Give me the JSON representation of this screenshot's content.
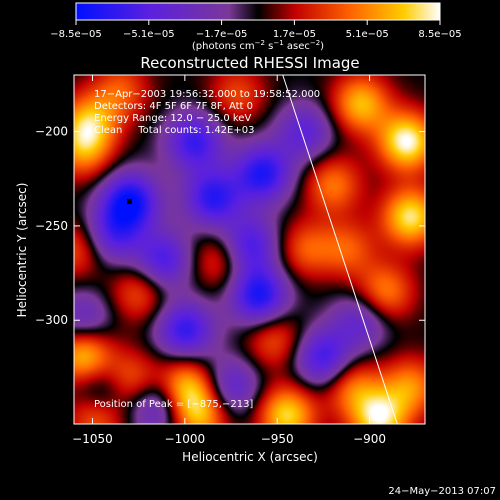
{
  "chart_data": {
    "type": "heatmap",
    "title": "Reconstructed RHESSI Image",
    "xlabel": "Heliocentric X (arcsec)",
    "ylabel": "Heliocentric Y (arcsec)",
    "xlim": [
      -1060,
      -870
    ],
    "ylim": [
      -355,
      -170
    ],
    "x_ticks": [
      -1050,
      -1000,
      -950,
      -900
    ],
    "x_tick_labels": [
      "−1050",
      "−1000",
      "−950",
      "−900"
    ],
    "y_ticks": [
      -200,
      -250,
      -300
    ],
    "y_tick_labels": [
      "−200",
      "−250",
      "−300"
    ],
    "colorbar": {
      "min": -8.5e-05,
      "max": 8.5e-05,
      "ticks": [
        -8.5e-05,
        -5.1e-05,
        -1.7e-05,
        1.7e-05,
        5.1e-05,
        8.5e-05
      ],
      "tick_labels": [
        "−8.5e−05",
        "−5.1e−05",
        "−1.7e−05",
        "1.7e−05",
        "5.1e−05",
        "8.5e−05"
      ],
      "units_text": "(photons cm",
      "units_exp1": "−2",
      "units_mid": " s",
      "units_exp2": "−1",
      "units_end": " asec",
      "units_exp3": "−2",
      "units_close": ")"
    },
    "annotations": [
      "17−Apr−2003 19:56:32.000 to 19:58:52.000",
      "Detectors: 4F 5F 6F 7F 8F, Att 0",
      "Energy Range: 12.0 − 25.0 keV",
      "Clean     Total counts: 1.42E+03"
    ],
    "peak_label": "Position of Peak = [−875,−213]",
    "limb_line": [
      {
        "x": -947,
        "y": -170
      },
      {
        "x": -885,
        "y": -355
      }
    ],
    "min_marker": {
      "x": -1030,
      "y": -237
    },
    "blobs": [
      {
        "x": -1030,
        "y": -237,
        "v": -0.98
      },
      {
        "x": -1040,
        "y": -255,
        "v": -0.6
      },
      {
        "x": -995,
        "y": -205,
        "v": -0.75
      },
      {
        "x": -985,
        "y": -235,
        "v": -0.8
      },
      {
        "x": -958,
        "y": -222,
        "v": -0.85
      },
      {
        "x": -965,
        "y": -260,
        "v": -0.7
      },
      {
        "x": -1012,
        "y": -268,
        "v": -0.7
      },
      {
        "x": -960,
        "y": -287,
        "v": -0.9
      },
      {
        "x": -1000,
        "y": -305,
        "v": -0.78
      },
      {
        "x": -1055,
        "y": -300,
        "v": -0.5
      },
      {
        "x": -925,
        "y": -320,
        "v": -0.75
      },
      {
        "x": -1045,
        "y": -338,
        "v": -0.55
      },
      {
        "x": -905,
        "y": -300,
        "v": -0.5
      },
      {
        "x": -935,
        "y": -200,
        "v": -0.55
      },
      {
        "x": -975,
        "y": -335,
        "v": -0.55
      },
      {
        "x": -1015,
        "y": -345,
        "v": -0.6
      },
      {
        "x": -880,
        "y": -205,
        "v": 1.0
      },
      {
        "x": -878,
        "y": -245,
        "v": 0.9
      },
      {
        "x": -892,
        "y": -285,
        "v": 0.6
      },
      {
        "x": -905,
        "y": -185,
        "v": 0.75
      },
      {
        "x": -920,
        "y": -228,
        "v": 0.55
      },
      {
        "x": -1052,
        "y": -195,
        "v": 0.7
      },
      {
        "x": -1055,
        "y": -210,
        "v": 0.55
      },
      {
        "x": -1055,
        "y": -318,
        "v": 0.85
      },
      {
        "x": -1048,
        "y": -350,
        "v": 0.6
      },
      {
        "x": -1030,
        "y": -332,
        "v": 0.55
      },
      {
        "x": -1000,
        "y": -335,
        "v": 0.75
      },
      {
        "x": -992,
        "y": -350,
        "v": 0.7
      },
      {
        "x": -945,
        "y": -350,
        "v": 0.85
      },
      {
        "x": -910,
        "y": -335,
        "v": 0.55
      },
      {
        "x": -895,
        "y": -352,
        "v": 0.9
      },
      {
        "x": -878,
        "y": -335,
        "v": 0.6
      },
      {
        "x": -1025,
        "y": -285,
        "v": 0.45
      },
      {
        "x": -1058,
        "y": -262,
        "v": 0.45
      },
      {
        "x": -935,
        "y": -262,
        "v": 0.45
      },
      {
        "x": -982,
        "y": -268,
        "v": 0.4
      },
      {
        "x": -952,
        "y": -310,
        "v": 0.45
      },
      {
        "x": -1035,
        "y": -178,
        "v": 0.45
      },
      {
        "x": -972,
        "y": -180,
        "v": 0.4
      },
      {
        "x": -912,
        "y": -262,
        "v": 0.45
      }
    ]
  },
  "footer": {
    "timestamp": "24−May−2013 07:07"
  }
}
